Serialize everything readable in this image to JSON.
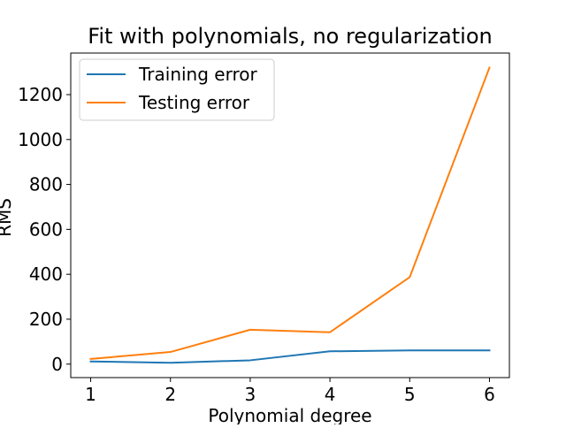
{
  "chart_data": {
    "type": "line",
    "title": "Fit with polynomials, no regularization",
    "xlabel": "Polynomial degree",
    "ylabel": "RMS",
    "x": [
      1,
      2,
      3,
      4,
      5,
      6
    ],
    "xlim": [
      0.75,
      6.25
    ],
    "ylim": [
      -60,
      1385
    ],
    "xticks": [
      1,
      2,
      3,
      4,
      5,
      6
    ],
    "yticks": [
      0,
      200,
      400,
      600,
      800,
      1000,
      1200
    ],
    "grid": false,
    "legend_position": "upper-left",
    "series": [
      {
        "name": "Training error",
        "color": "#1f77b4",
        "values": [
          12,
          6,
          17,
          57,
          61,
          61
        ]
      },
      {
        "name": "Testing error",
        "color": "#ff7f0e",
        "values": [
          23,
          54,
          153,
          142,
          387,
          1320
        ]
      }
    ]
  }
}
